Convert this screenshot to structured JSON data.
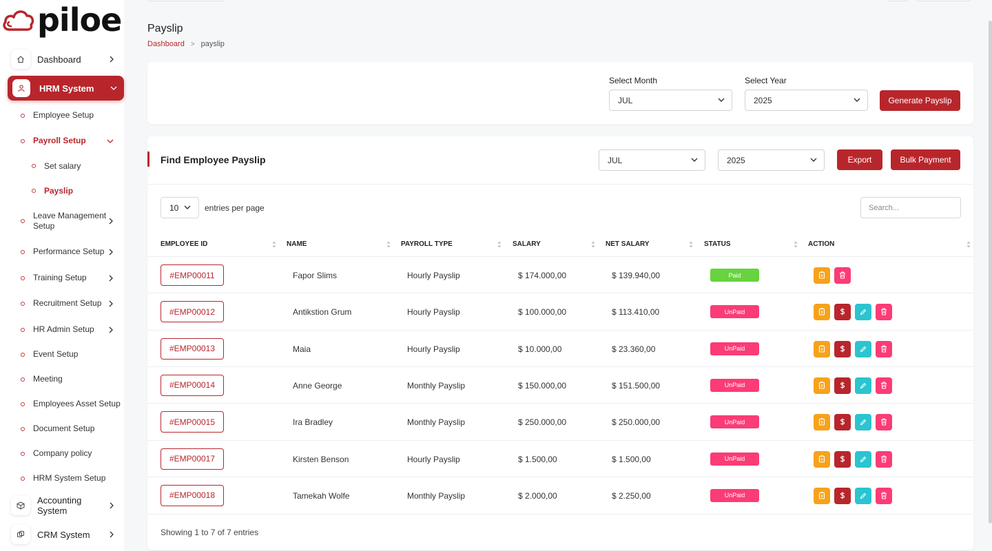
{
  "brand": {
    "name": "piloe",
    "accent": "#b8262c"
  },
  "sidebar": {
    "dashboard": "Dashboard",
    "hrm": "HRM System",
    "subitems": [
      "Employee Setup",
      "Payroll Setup",
      "Set salary",
      "Payslip",
      "Leave Management Setup",
      "Performance Setup",
      "Training Setup",
      "Recruitment Setup",
      "HR Admin Setup",
      "Event Setup",
      "Meeting",
      "Employees Asset Setup",
      "Document Setup",
      "Company policy",
      "HRM System Setup"
    ],
    "accounting": "Accounting System",
    "crm": "CRM System"
  },
  "header": {
    "title": "Payslip",
    "breadcrumb": [
      "Dashboard",
      "payslip"
    ]
  },
  "generate": {
    "month_label": "Select Month",
    "month_value": "JUL",
    "year_label": "Select Year",
    "year_value": "2025",
    "button": "Generate Payslip"
  },
  "find": {
    "title": "Find Employee Payslip",
    "month_value": "JUL",
    "year_value": "2025",
    "export": "Export",
    "bulk": "Bulk Payment",
    "entries_value": "10",
    "entries_label": "entries per page",
    "search_placeholder": "Search...",
    "columns": [
      "EMPLOYEE ID",
      "NAME",
      "PAYROLL TYPE",
      "SALARY",
      "NET SALARY",
      "STATUS",
      "ACTION"
    ],
    "rows": [
      {
        "id": "#EMP00011",
        "name": "Fapor Slims",
        "type": "Hourly Payslip",
        "salary": "$ 174.000,00",
        "net": "$ 139.940,00",
        "status": "Paid"
      },
      {
        "id": "#EMP00012",
        "name": "Antikstion Grum",
        "type": "Hourly Payslip",
        "salary": "$ 100.000,00",
        "net": "$ 113.410,00",
        "status": "UnPaid"
      },
      {
        "id": "#EMP00013",
        "name": "Maia",
        "type": "Hourly Payslip",
        "salary": "$ 10.000,00",
        "net": "$ 23.360,00",
        "status": "UnPaid"
      },
      {
        "id": "#EMP00014",
        "name": "Anne George",
        "type": "Monthly Payslip",
        "salary": "$ 150.000,00",
        "net": "$ 151.500,00",
        "status": "UnPaid"
      },
      {
        "id": "#EMP00015",
        "name": "Ira Bradley",
        "type": "Monthly Payslip",
        "salary": "$ 250.000,00",
        "net": "$ 250.000,00",
        "status": "UnPaid"
      },
      {
        "id": "#EMP00017",
        "name": "Kirsten Benson",
        "type": "Hourly Payslip",
        "salary": "$ 1.500,00",
        "net": "$ 1.500,00",
        "status": "UnPaid"
      },
      {
        "id": "#EMP00018",
        "name": "Tamekah Wolfe",
        "type": "Monthly Payslip",
        "salary": "$ 2.000,00",
        "net": "$ 2.250,00",
        "status": "UnPaid"
      }
    ],
    "footer": "Showing 1 to 7 of 7 entries"
  },
  "colors": {
    "paid": "#67d33f",
    "unpaid": "#fb3c76",
    "view": "#f7a21b",
    "pay": "#b8262c",
    "edit": "#2bc4cf",
    "delete": "#fb3c76"
  }
}
